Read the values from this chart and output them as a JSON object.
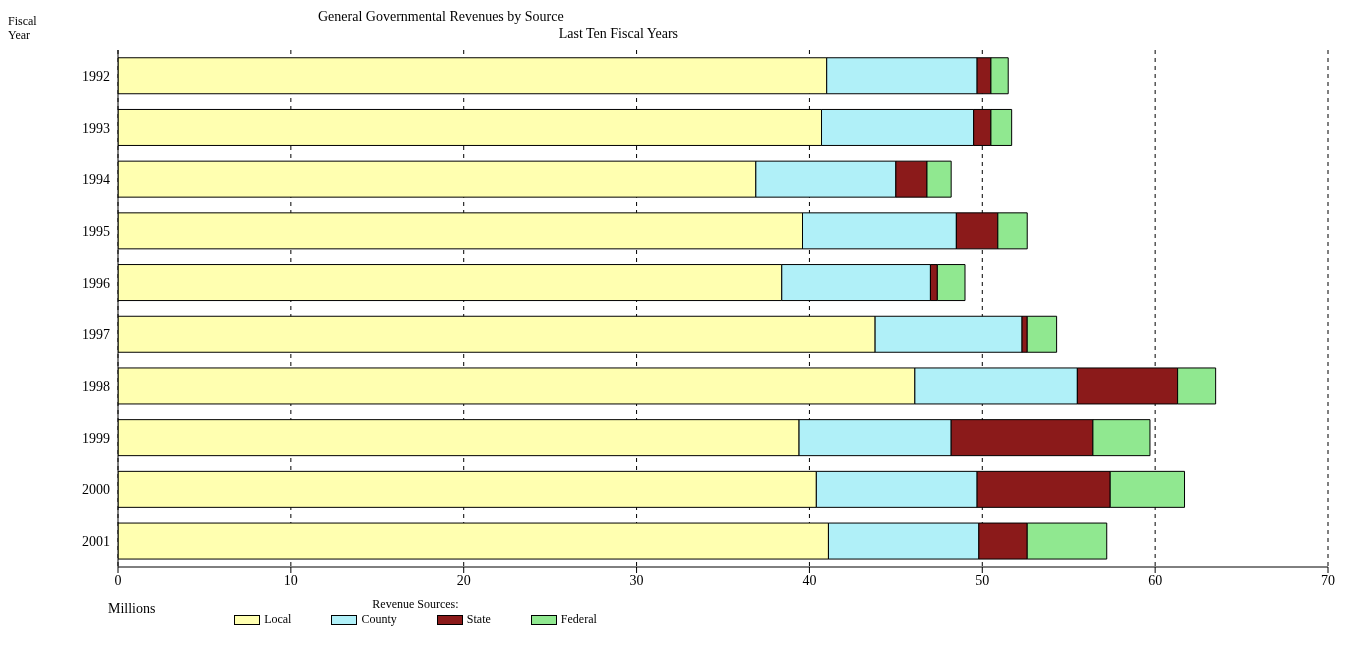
{
  "chart_data": {
    "type": "bar",
    "orientation": "horizontal",
    "stacked": true,
    "title": "General Governmental Revenues by Source",
    "subtitle": "Last Ten Fiscal Years",
    "ylabel": "Fiscal Year",
    "xlabel": "Millions",
    "legend_title": "Revenue Sources:",
    "categories": [
      "1992",
      "1993",
      "1994",
      "1995",
      "1996",
      "1997",
      "1998",
      "1999",
      "2000",
      "2001"
    ],
    "series": [
      {
        "name": "Local",
        "color": "#ffffb0",
        "values": [
          41.0,
          40.7,
          36.9,
          39.6,
          38.4,
          43.8,
          46.1,
          39.4,
          40.4,
          41.1
        ]
      },
      {
        "name": "County",
        "color": "#b0f0f8",
        "values": [
          8.7,
          8.8,
          8.1,
          8.9,
          8.6,
          8.5,
          9.4,
          8.8,
          9.3,
          8.7
        ]
      },
      {
        "name": "State",
        "color": "#8b1a1a",
        "values": [
          0.8,
          1.0,
          1.8,
          2.4,
          0.4,
          0.3,
          5.8,
          8.2,
          7.7,
          2.8
        ]
      },
      {
        "name": "Federal",
        "color": "#90e890",
        "values": [
          1.0,
          1.2,
          1.4,
          1.7,
          1.6,
          1.7,
          2.2,
          3.3,
          4.3,
          4.6
        ]
      }
    ],
    "xlim": [
      0,
      70
    ],
    "xticks": [
      0,
      10,
      20,
      30,
      40,
      50,
      60,
      70
    ],
    "grid": "x",
    "line_style": "dashed",
    "legend": "bottom"
  }
}
